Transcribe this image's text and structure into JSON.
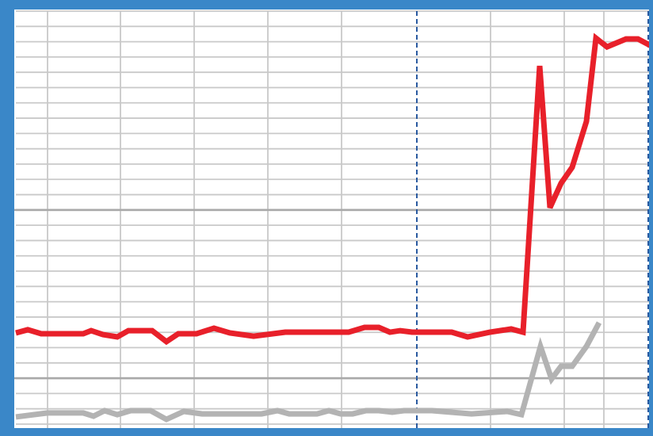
{
  "chart_data": {
    "type": "line",
    "xlim": [
      0,
      80.4
    ],
    "ylim": [
      0,
      27
    ],
    "xticks": [
      4,
      13.2,
      22.5,
      31.8,
      41.1,
      59.9,
      69.2,
      74.2
    ],
    "vlines": [
      50.6,
      79.8
    ],
    "vline_color": "#2a5aa0",
    "yticks": [
      0,
      1,
      2,
      3,
      4,
      5,
      6,
      7,
      8,
      9,
      10,
      11,
      12,
      13,
      14,
      15,
      16,
      17,
      18,
      19,
      20,
      21,
      22,
      23,
      24,
      25,
      26,
      27
    ],
    "major_yticks": [
      3,
      14
    ],
    "grid": true,
    "grid_color": "#c9c9c9",
    "major_grid_color": "#a9a9a9",
    "frame_color": "#3a87c8",
    "series": [
      {
        "color": "#e8202a",
        "x": [
          0,
          1.5,
          3.2,
          8.5,
          9.5,
          11,
          12.8,
          14.2,
          17.2,
          19,
          20.5,
          22.8,
          25,
          27,
          30,
          34,
          42,
          44,
          45.8,
          47.2,
          48.5,
          50,
          55,
          57,
          59.8,
          62.5,
          64,
          66.1,
          67.4,
          68.8,
          70.2,
          72,
          73.2,
          74.6,
          77,
          78.5,
          80.4
        ],
        "values": [
          5.96,
          6.17,
          5.91,
          5.91,
          6.11,
          5.85,
          5.7,
          6.11,
          6.11,
          5.39,
          5.91,
          5.91,
          6.27,
          5.96,
          5.75,
          6.01,
          6.01,
          6.32,
          6.32,
          6.01,
          6.11,
          6.01,
          6.01,
          5.7,
          6.01,
          6.22,
          6.01,
          23.42,
          14.15,
          15.75,
          16.79,
          19.79,
          25.23,
          24.66,
          25.18,
          25.18,
          24.66
        ]
      },
      {
        "color": "#b3b3b3",
        "x": [
          0,
          4,
          8.5,
          9.8,
          11.2,
          12.8,
          14.5,
          17,
          19,
          21.2,
          23.5,
          31,
          33,
          34.5,
          38,
          39.5,
          41,
          42.5,
          44.2,
          45.8,
          47.5,
          49,
          52.5,
          57.5,
          62,
          63.8,
          66.2,
          67.6,
          68.8,
          70.2,
          72,
          73.6
        ],
        "values": [
          0.47,
          0.73,
          0.73,
          0.52,
          0.88,
          0.62,
          0.88,
          0.88,
          0.31,
          0.83,
          0.67,
          0.67,
          0.88,
          0.67,
          0.67,
          0.88,
          0.67,
          0.67,
          0.88,
          0.88,
          0.78,
          0.88,
          0.88,
          0.67,
          0.83,
          0.62,
          5.08,
          2.95,
          3.78,
          3.78,
          5.08,
          6.63
        ]
      }
    ]
  }
}
